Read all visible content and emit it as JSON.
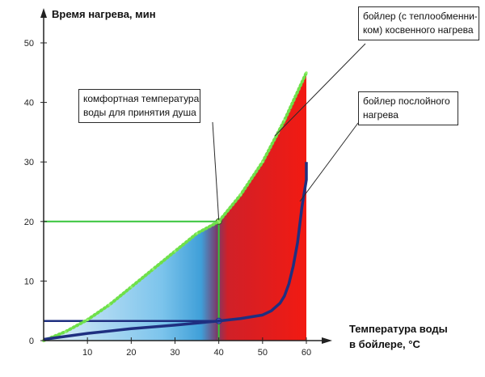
{
  "chart_data": {
    "type": "area",
    "title": "",
    "xlabel": "Температура воды\nв бойлере, °C",
    "ylabel": "Время нагрева, мин",
    "xlim": [
      0,
      65
    ],
    "ylim": [
      0,
      50
    ],
    "x_ticks": [
      "10",
      "20",
      "30",
      "40",
      "50",
      "60"
    ],
    "x_tick_values": [
      10,
      20,
      30,
      40,
      50,
      60
    ],
    "y_ticks": [
      "0",
      "10",
      "20",
      "30",
      "40",
      "50"
    ],
    "y_tick_values": [
      0,
      10,
      20,
      30,
      40,
      50
    ],
    "grid": false,
    "series": [
      {
        "name": "бойлер (с теплообменни-\nком) косвенного нагрева",
        "x": [
          0,
          5,
          10,
          15,
          20,
          25,
          30,
          35,
          40,
          45,
          50,
          55,
          60
        ],
        "values": [
          0,
          1.5,
          3.5,
          6,
          9,
          12,
          15,
          18,
          20,
          24.5,
          30,
          37,
          45
        ],
        "color": "#6fe04a"
      },
      {
        "name": "бойлер послойного\nнагрева",
        "x": [
          0,
          10,
          20,
          30,
          40,
          45,
          50,
          52,
          54,
          55,
          56,
          57,
          58,
          59,
          60,
          60
        ],
        "values": [
          0.2,
          1.2,
          2,
          2.6,
          3.3,
          3.7,
          4.3,
          5,
          6.3,
          7.5,
          9.5,
          12.5,
          16.5,
          22.5,
          27,
          30
        ],
        "color": "#1f2f80"
      }
    ],
    "reference": {
      "x": 40,
      "y": 20,
      "y_low": 3.3,
      "baseline": 3.3,
      "color": "#36c43a"
    },
    "annotations": {
      "comfort": "комфортная температура\nводы для принятия душа",
      "indirect": "бойлер (с теплообменни-\nком) косвенного нагрева",
      "layered": "бойлер послойного\nнагрева"
    },
    "colors": {
      "cold": "#5fb8e8",
      "hot": "#e8231e",
      "mid": "#8a3060"
    }
  }
}
